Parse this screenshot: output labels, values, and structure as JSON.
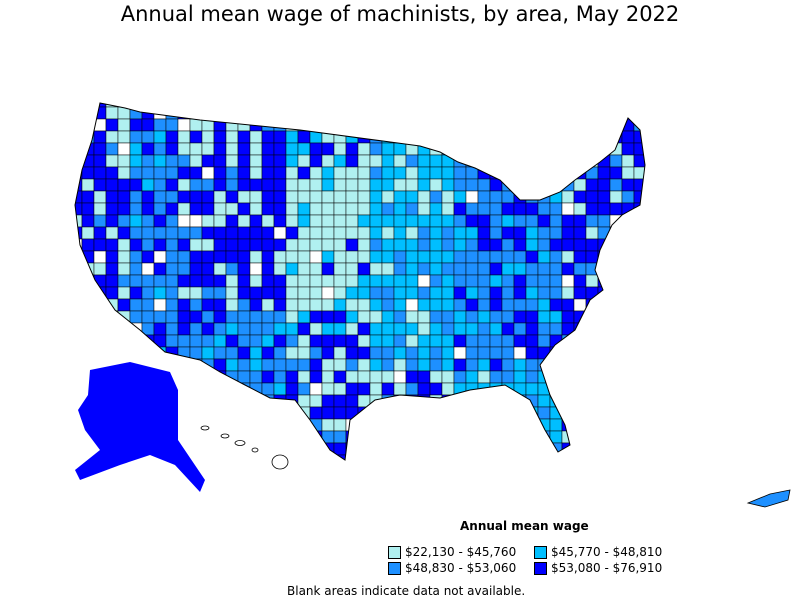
{
  "title": "Annual mean wage of machinists, by area, May 2022",
  "legend": {
    "title": "Annual mean wage",
    "items": [
      {
        "label": "$22,130 - $45,760",
        "color": "#b0f0f0"
      },
      {
        "label": "$45,770 - $48,810",
        "color": "#00bfff"
      },
      {
        "label": "$48,830 - $53,060",
        "color": "#1e90ff"
      },
      {
        "label": "$53,080 - $76,910",
        "color": "#0000ff"
      }
    ]
  },
  "note": "Blank areas indicate data not available."
}
